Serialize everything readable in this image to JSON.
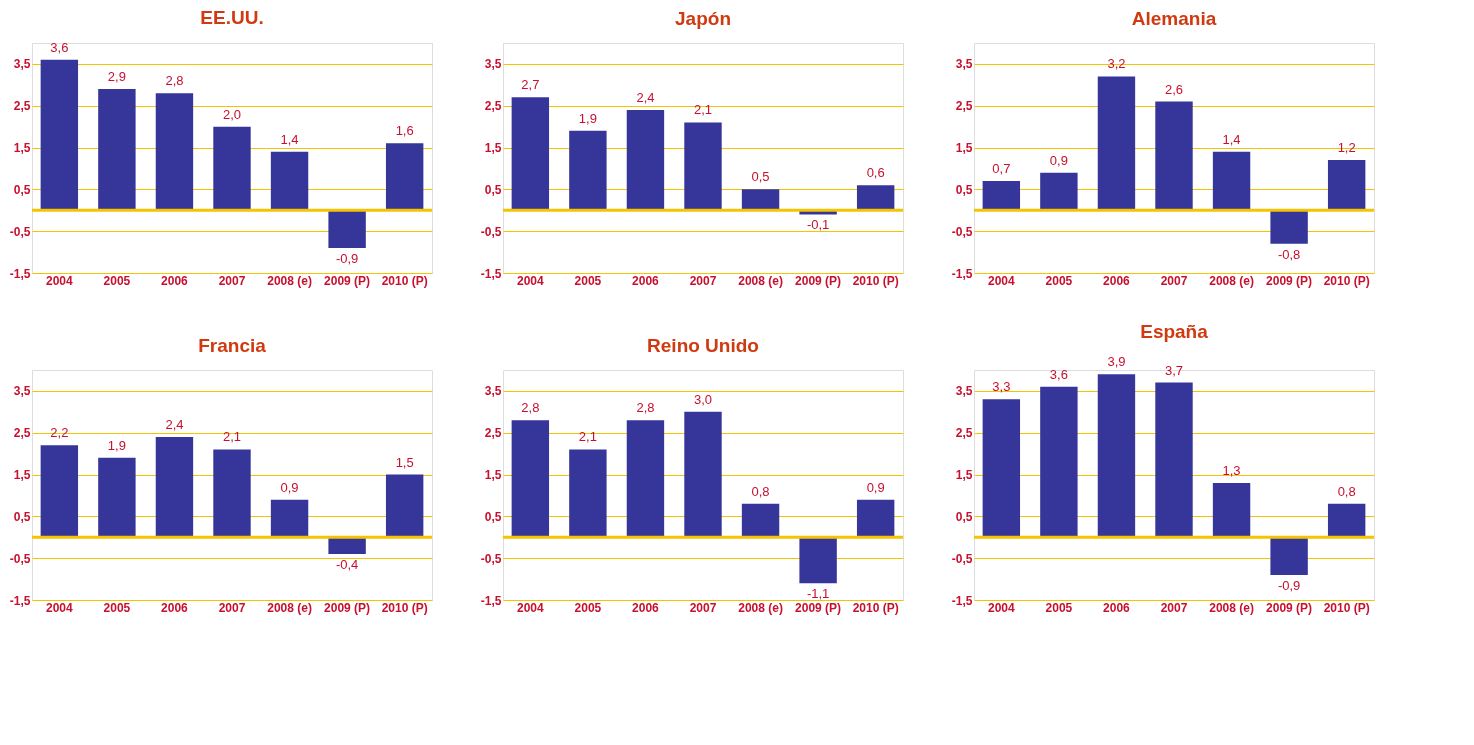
{
  "chart_data": [
    {
      "type": "bar",
      "title": "EE.UU.",
      "categories": [
        "2004",
        "2005",
        "2006",
        "2007",
        "2008 (e)",
        "2009 (P)",
        "2010 (P)"
      ],
      "series": [
        {
          "color": "#35359a",
          "values": [
            3.6,
            2.9,
            2.8,
            2.0,
            1.4,
            -0.9,
            1.6
          ],
          "value_labels": [
            "3,6",
            "2,9",
            "2,8",
            "2,0",
            "1,4",
            "-0,9",
            "1,6"
          ]
        }
      ],
      "ylim": [
        -1.5,
        4.0
      ],
      "yticks": [
        {
          "value": -1.5,
          "label": "-1,5"
        },
        {
          "value": -0.5,
          "label": "-0,5"
        },
        {
          "value": 0.5,
          "label": "0,5"
        },
        {
          "value": 1.5,
          "label": "1,5"
        },
        {
          "value": 2.5,
          "label": "2,5"
        },
        {
          "value": 3.5,
          "label": "3,5"
        }
      ],
      "grid": "y",
      "ref_lines": [
        {
          "axis": "y",
          "value": 0,
          "color": "#f5c400"
        }
      ]
    },
    {
      "type": "bar",
      "title": "Japón",
      "categories": [
        "2004",
        "2005",
        "2006",
        "2007",
        "2008 (e)",
        "2009 (P)",
        "2010 (P)"
      ],
      "series": [
        {
          "color": "#35359a",
          "values": [
            2.7,
            1.9,
            2.4,
            2.1,
            0.5,
            -0.1,
            0.6
          ],
          "value_labels": [
            "2,7",
            "1,9",
            "2,4",
            "2,1",
            "0,5",
            "-0,1",
            "0,6"
          ]
        }
      ],
      "ylim": [
        -1.5,
        4.0
      ],
      "yticks": [
        {
          "value": -1.5,
          "label": "-1,5"
        },
        {
          "value": -0.5,
          "label": "-0,5"
        },
        {
          "value": 0.5,
          "label": "0,5"
        },
        {
          "value": 1.5,
          "label": "1,5"
        },
        {
          "value": 2.5,
          "label": "2,5"
        },
        {
          "value": 3.5,
          "label": "3,5"
        }
      ],
      "grid": "y",
      "ref_lines": [
        {
          "axis": "y",
          "value": 0,
          "color": "#f5c400"
        }
      ]
    },
    {
      "type": "bar",
      "title": "Alemania",
      "categories": [
        "2004",
        "2005",
        "2006",
        "2007",
        "2008 (e)",
        "2009 (P)",
        "2010 (P)"
      ],
      "series": [
        {
          "color": "#35359a",
          "values": [
            0.7,
            0.9,
            3.2,
            2.6,
            1.4,
            -0.8,
            1.2
          ],
          "value_labels": [
            "0,7",
            "0,9",
            "3,2",
            "2,6",
            "1,4",
            "-0,8",
            "1,2"
          ]
        }
      ],
      "ylim": [
        -1.5,
        4.0
      ],
      "yticks": [
        {
          "value": -1.5,
          "label": "-1,5"
        },
        {
          "value": -0.5,
          "label": "-0,5"
        },
        {
          "value": 0.5,
          "label": "0,5"
        },
        {
          "value": 1.5,
          "label": "1,5"
        },
        {
          "value": 2.5,
          "label": "2,5"
        },
        {
          "value": 3.5,
          "label": "3,5"
        }
      ],
      "grid": "y",
      "ref_lines": [
        {
          "axis": "y",
          "value": 0,
          "color": "#f5c400"
        }
      ]
    },
    {
      "type": "bar",
      "title": "Francia",
      "categories": [
        "2004",
        "2005",
        "2006",
        "2007",
        "2008 (e)",
        "2009 (P)",
        "2010 (P)"
      ],
      "series": [
        {
          "color": "#35359a",
          "values": [
            2.2,
            1.9,
            2.4,
            2.1,
            0.9,
            -0.4,
            1.5
          ],
          "value_labels": [
            "2,2",
            "1,9",
            "2,4",
            "2,1",
            "0,9",
            "-0,4",
            "1,5"
          ]
        }
      ],
      "ylim": [
        -1.5,
        4.0
      ],
      "yticks": [
        {
          "value": -1.5,
          "label": "-1,5"
        },
        {
          "value": -0.5,
          "label": "-0,5"
        },
        {
          "value": 0.5,
          "label": "0,5"
        },
        {
          "value": 1.5,
          "label": "1,5"
        },
        {
          "value": 2.5,
          "label": "2,5"
        },
        {
          "value": 3.5,
          "label": "3,5"
        }
      ],
      "grid": "y",
      "ref_lines": [
        {
          "axis": "y",
          "value": 0,
          "color": "#f5c400"
        }
      ]
    },
    {
      "type": "bar",
      "title": "Reino Unido",
      "categories": [
        "2004",
        "2005",
        "2006",
        "2007",
        "2008 (e)",
        "2009 (P)",
        "2010 (P)"
      ],
      "series": [
        {
          "color": "#35359a",
          "values": [
            2.8,
            2.1,
            2.8,
            3.0,
            0.8,
            -1.1,
            0.9
          ],
          "value_labels": [
            "2,8",
            "2,1",
            "2,8",
            "3,0",
            "0,8",
            "-1,1",
            "0,9"
          ]
        }
      ],
      "ylim": [
        -1.5,
        4.0
      ],
      "yticks": [
        {
          "value": -1.5,
          "label": "-1,5"
        },
        {
          "value": -0.5,
          "label": "-0,5"
        },
        {
          "value": 0.5,
          "label": "0,5"
        },
        {
          "value": 1.5,
          "label": "1,5"
        },
        {
          "value": 2.5,
          "label": "2,5"
        },
        {
          "value": 3.5,
          "label": "3,5"
        }
      ],
      "grid": "y",
      "ref_lines": [
        {
          "axis": "y",
          "value": 0,
          "color": "#f5c400"
        }
      ]
    },
    {
      "type": "bar",
      "title": "España",
      "categories": [
        "2004",
        "2005",
        "2006",
        "2007",
        "2008 (e)",
        "2009 (P)",
        "2010 (P)"
      ],
      "series": [
        {
          "color": "#35359a",
          "values": [
            3.3,
            3.6,
            3.9,
            3.7,
            1.3,
            -0.9,
            0.8
          ],
          "value_labels": [
            "3,3",
            "3,6",
            "3,9",
            "3,7",
            "1,3",
            "-0,9",
            "0,8"
          ]
        }
      ],
      "ylim": [
        -1.5,
        4.0
      ],
      "yticks": [
        {
          "value": -1.5,
          "label": "-1,5"
        },
        {
          "value": -0.5,
          "label": "-0,5"
        },
        {
          "value": 0.5,
          "label": "0,5"
        },
        {
          "value": 1.5,
          "label": "1,5"
        },
        {
          "value": 2.5,
          "label": "2,5"
        },
        {
          "value": 3.5,
          "label": "3,5"
        }
      ],
      "grid": "y",
      "ref_lines": [
        {
          "axis": "y",
          "value": 0,
          "color": "#f5c400"
        }
      ]
    }
  ]
}
